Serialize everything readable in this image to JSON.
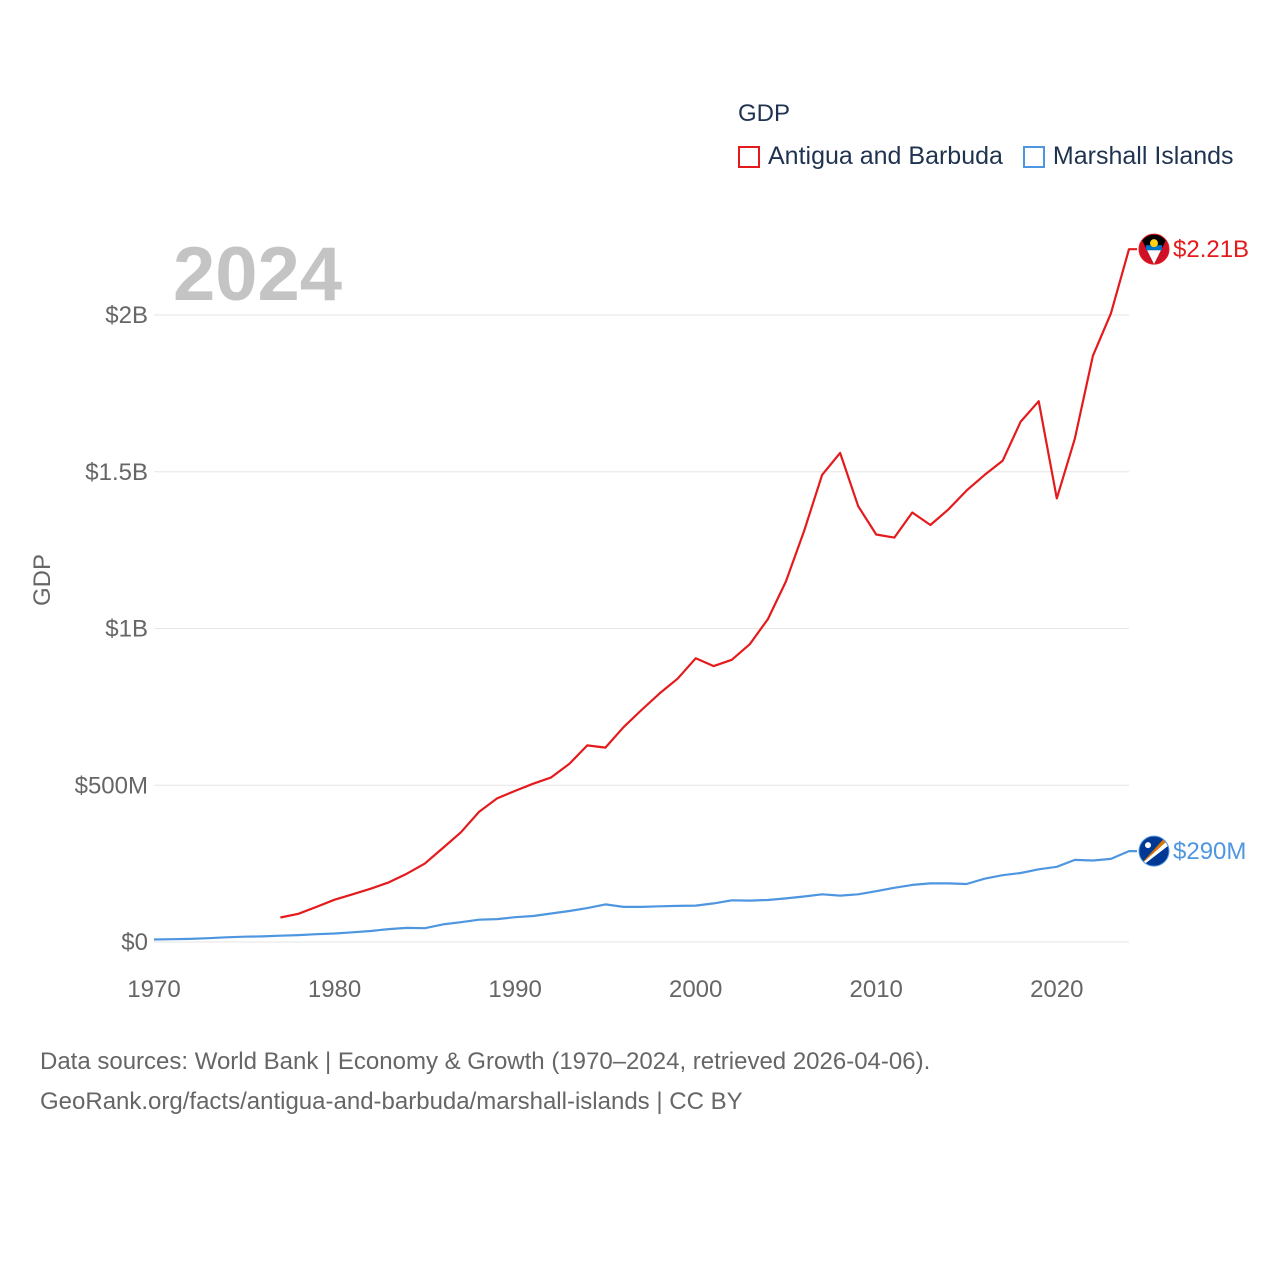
{
  "chart_data": {
    "type": "line",
    "year_label": "2024",
    "ylabel": "GDP",
    "legend_title": "GDP",
    "x_ticks": [
      1970,
      1980,
      1990,
      2000,
      2010,
      2020
    ],
    "y_ticks": [
      {
        "value": 0,
        "label": "$0"
      },
      {
        "value": 500,
        "label": "$500M"
      },
      {
        "value": 1000,
        "label": "$1B"
      },
      {
        "value": 1500,
        "label": "$1.5B"
      },
      {
        "value": 2000,
        "label": "$2B"
      }
    ],
    "xlim": [
      1970,
      2024
    ],
    "ylim": [
      0,
      2300
    ],
    "units": "millions USD",
    "series": [
      {
        "name": "Antigua and Barbuda",
        "color": "#e41a1c",
        "end_label": "$2.21B",
        "flag_icon": "antigua-and-barbuda-flag-icon",
        "x": [
          1977,
          1978,
          1979,
          1980,
          1981,
          1982,
          1983,
          1984,
          1985,
          1986,
          1987,
          1988,
          1989,
          1990,
          1991,
          1992,
          1993,
          1994,
          1995,
          1996,
          1997,
          1998,
          1999,
          2000,
          2001,
          2002,
          2003,
          2004,
          2005,
          2006,
          2007,
          2008,
          2009,
          2010,
          2011,
          2012,
          2013,
          2014,
          2015,
          2016,
          2017,
          2018,
          2019,
          2020,
          2021,
          2022,
          2023,
          2024
        ],
        "values": [
          78,
          90,
          112,
          135,
          152,
          170,
          190,
          218,
          250,
          300,
          350,
          415,
          458,
          482,
          505,
          525,
          568,
          627,
          620,
          685,
          740,
          793,
          840,
          905,
          880,
          900,
          950,
          1030,
          1150,
          1310,
          1490,
          1560,
          1390,
          1300,
          1290,
          1370,
          1330,
          1380,
          1440,
          1490,
          1535,
          1660,
          1725,
          1415,
          1605,
          1870,
          2005,
          2210
        ]
      },
      {
        "name": "Marshall Islands",
        "color": "#4e96e0",
        "end_label": "$290M",
        "flag_icon": "marshall-islands-flag-icon",
        "x": [
          1970,
          1971,
          1972,
          1973,
          1974,
          1975,
          1976,
          1977,
          1978,
          1979,
          1980,
          1981,
          1982,
          1983,
          1984,
          1985,
          1986,
          1987,
          1988,
          1989,
          1990,
          1991,
          1992,
          1993,
          1994,
          1995,
          1996,
          1997,
          1998,
          1999,
          2000,
          2001,
          2002,
          2003,
          2004,
          2005,
          2006,
          2007,
          2008,
          2009,
          2010,
          2011,
          2012,
          2013,
          2014,
          2015,
          2016,
          2017,
          2018,
          2019,
          2020,
          2021,
          2022,
          2023,
          2024
        ],
        "values": [
          8,
          9,
          10,
          12,
          15,
          17,
          18,
          20,
          22,
          25,
          27,
          31,
          35,
          41,
          45,
          44,
          56,
          63,
          71,
          73,
          79,
          83,
          91,
          99,
          108,
          120,
          112,
          112,
          114,
          115,
          116,
          123,
          133,
          132,
          134,
          139,
          145,
          152,
          148,
          152,
          162,
          173,
          182,
          187,
          187,
          185,
          202,
          213,
          220,
          232,
          240,
          262,
          260,
          265,
          290
        ]
      }
    ]
  },
  "footer": {
    "line1": "Data sources: World Bank | Economy & Growth (1970–2024, retrieved 2026-04-06).",
    "line2": "GeoRank.org/facts/antigua-and-barbuda/marshall-islands | CC BY"
  }
}
